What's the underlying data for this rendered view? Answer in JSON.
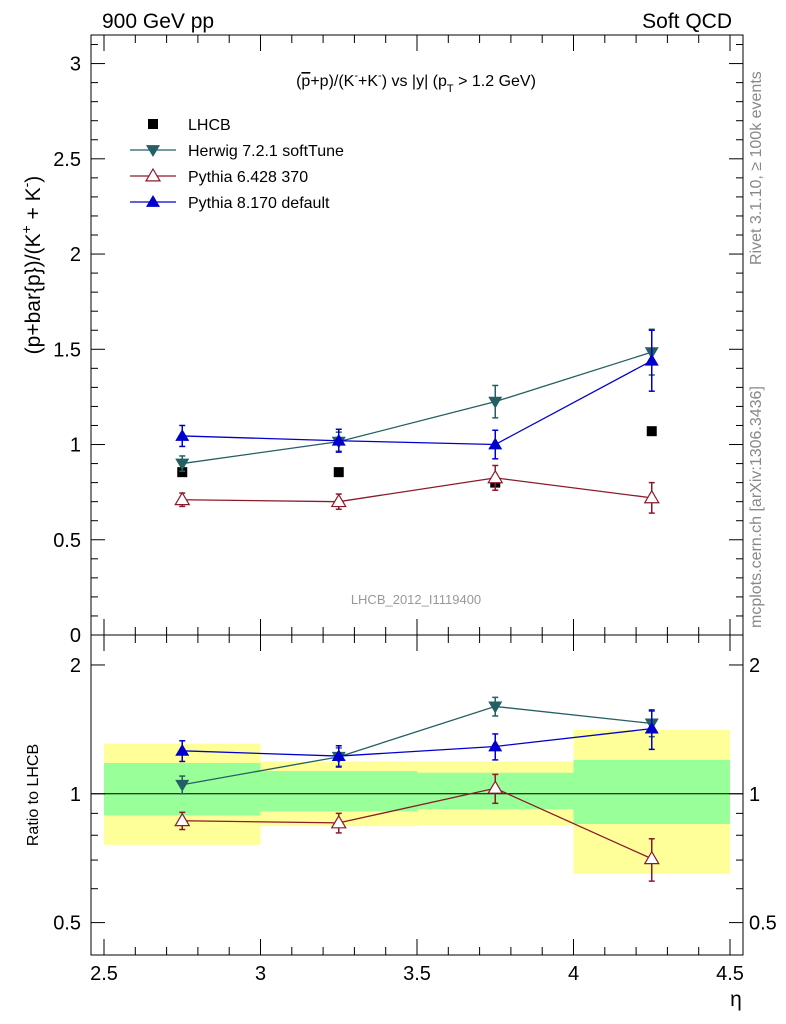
{
  "header": {
    "left": "900 GeV pp",
    "right": "Soft QCD"
  },
  "side_labels": {
    "rivet": "Rivet 3.1.10, ≥ 100k events",
    "mcplots": "mcplots.cern.ch [arXiv:1306.3436]"
  },
  "chart_data": [
    {
      "panel": "main",
      "type": "scatter",
      "title": "(p̄+p)/(K⁻+K⁻) vs |y| (p_T > 1.2 GeV)",
      "title_parts": {
        "a": "(",
        "pbar": "p",
        "b": "+p)/(K",
        "sup1": "-",
        "c": "+K",
        "sup2": "-",
        "d": ") vs |y| (p",
        "sub": "T",
        "e": " > 1.2 GeV)"
      },
      "ylabel": "(p+bar{p})/(K⁺ + K⁻)",
      "ylabel_parts": {
        "a": "(p+bar{p})/(K",
        "sup1": "+",
        "b": " + K",
        "sup2": "-",
        "c": ")"
      },
      "xlim": [
        2.5,
        4.5
      ],
      "ylim": [
        0,
        3.15
      ],
      "yticks": [
        0,
        0.5,
        1,
        1.5,
        2,
        2.5,
        3
      ],
      "ytick_labels": [
        "0",
        "0.5",
        "1",
        "1.5",
        "2",
        "2.5",
        "3"
      ],
      "watermark": "LHCB_2012_I1119400",
      "legend_position": "top-left",
      "series": [
        {
          "name": "LHCB",
          "marker": "square",
          "color": "#000000",
          "x": [
            2.75,
            3.25,
            3.75,
            4.25
          ],
          "y": [
            0.855,
            0.855,
            0.8,
            1.07
          ],
          "err": [
            0.02,
            0.02,
            0.02,
            0.02
          ]
        },
        {
          "name": "Herwig 7.2.1 softTune",
          "marker": "triangle-down",
          "color": "#235f63",
          "x": [
            2.75,
            3.25,
            3.75,
            4.25
          ],
          "y": [
            0.9,
            1.015,
            1.225,
            1.485
          ],
          "err": [
            0.04,
            0.05,
            0.085,
            0.12
          ]
        },
        {
          "name": "Pythia 6.428 370",
          "marker": "triangle-open",
          "color": "#8b1a2a",
          "x": [
            2.75,
            3.25,
            3.75,
            4.25
          ],
          "y": [
            0.71,
            0.7,
            0.825,
            0.72
          ],
          "err": [
            0.035,
            0.04,
            0.065,
            0.08
          ]
        },
        {
          "name": "Pythia 8.170 default",
          "marker": "triangle-up",
          "color": "#0000cc",
          "x": [
            2.75,
            3.25,
            3.75,
            4.25
          ],
          "y": [
            1.045,
            1.02,
            1.0,
            1.44
          ],
          "err": [
            0.055,
            0.06,
            0.075,
            0.16
          ]
        }
      ]
    },
    {
      "panel": "ratio",
      "type": "scatter",
      "ylabel": "Ratio to LHCB",
      "xlabel": "η",
      "xlim": [
        2.5,
        4.5
      ],
      "ylim": [
        0.42,
        2.35
      ],
      "yscale": "log",
      "yticks": [
        0.5,
        1,
        2
      ],
      "ytick_labels": [
        "0.5",
        "1",
        "2"
      ],
      "xticks": [
        2.5,
        3,
        3.5,
        4,
        4.5
      ],
      "xtick_labels": [
        "2.5",
        "3",
        "3.5",
        "4",
        "4.5"
      ],
      "bands": [
        {
          "x0": 2.5,
          "x1": 3.0,
          "inner": [
            0.89,
            1.18
          ],
          "outer": [
            0.76,
            1.31
          ]
        },
        {
          "x0": 3.0,
          "x1": 3.5,
          "inner": [
            0.91,
            1.13
          ],
          "outer": [
            0.84,
            1.19
          ]
        },
        {
          "x0": 3.5,
          "x1": 4.0,
          "inner": [
            0.92,
            1.12
          ],
          "outer": [
            0.845,
            1.19
          ]
        },
        {
          "x0": 4.0,
          "x1": 4.5,
          "inner": [
            0.85,
            1.2
          ],
          "outer": [
            0.65,
            1.41
          ]
        }
      ],
      "series": [
        {
          "name": "Herwig 7.2.1 softTune",
          "marker": "triangle-down",
          "color": "#235f63",
          "x": [
            2.75,
            3.25,
            3.75,
            4.25
          ],
          "y": [
            1.05,
            1.22,
            1.6,
            1.46
          ],
          "err": [
            0.05,
            0.06,
            0.08,
            0.1
          ]
        },
        {
          "name": "Pythia 6.428 370",
          "marker": "triangle-open",
          "color": "#8b1a2a",
          "x": [
            2.75,
            3.25,
            3.75,
            4.25
          ],
          "y": [
            0.865,
            0.855,
            1.03,
            0.705
          ],
          "err": [
            0.04,
            0.045,
            0.08,
            0.08
          ]
        },
        {
          "name": "Pythia 8.170 default",
          "marker": "triangle-up",
          "color": "#0000cc",
          "x": [
            2.75,
            3.25,
            3.75,
            4.25
          ],
          "y": [
            1.26,
            1.225,
            1.29,
            1.42
          ],
          "err": [
            0.07,
            0.07,
            0.09,
            0.15
          ]
        }
      ]
    }
  ]
}
